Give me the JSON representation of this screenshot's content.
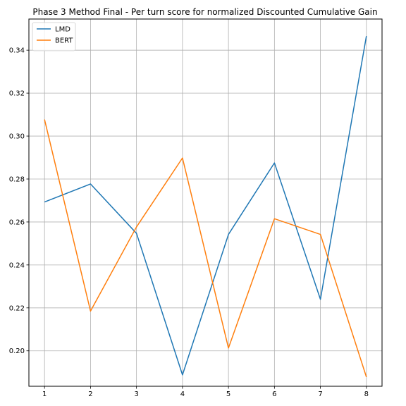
{
  "chart_data": {
    "type": "line",
    "title": "Phase 3 Method Final - Per turn score for normalized Discounted Cumulative Gain",
    "xlabel": "",
    "ylabel": "",
    "x": [
      1,
      2,
      3,
      4,
      5,
      6,
      7,
      8
    ],
    "xticks": [
      "1",
      "2",
      "3",
      "4",
      "5",
      "6",
      "7",
      "8"
    ],
    "xlim": [
      0.66,
      8.34
    ],
    "ylim": [
      0.1835,
      0.3545
    ],
    "yticks": [
      "0.20",
      "0.22",
      "0.24",
      "0.26",
      "0.28",
      "0.30",
      "0.32",
      "0.34"
    ],
    "ytick_values": [
      0.2,
      0.22,
      0.24,
      0.26,
      0.28,
      0.3,
      0.32,
      0.34
    ],
    "grid": true,
    "legend_position": "top-left",
    "series": [
      {
        "name": "LMD",
        "color": "#1f77b4",
        "values": [
          0.2693,
          0.2777,
          0.2547,
          0.1888,
          0.2542,
          0.2875,
          0.224,
          0.3466
        ]
      },
      {
        "name": "BERT",
        "color": "#ff7f0e",
        "values": [
          0.3077,
          0.2185,
          0.2577,
          0.2898,
          0.2013,
          0.2615,
          0.2542,
          0.1878
        ]
      }
    ]
  }
}
